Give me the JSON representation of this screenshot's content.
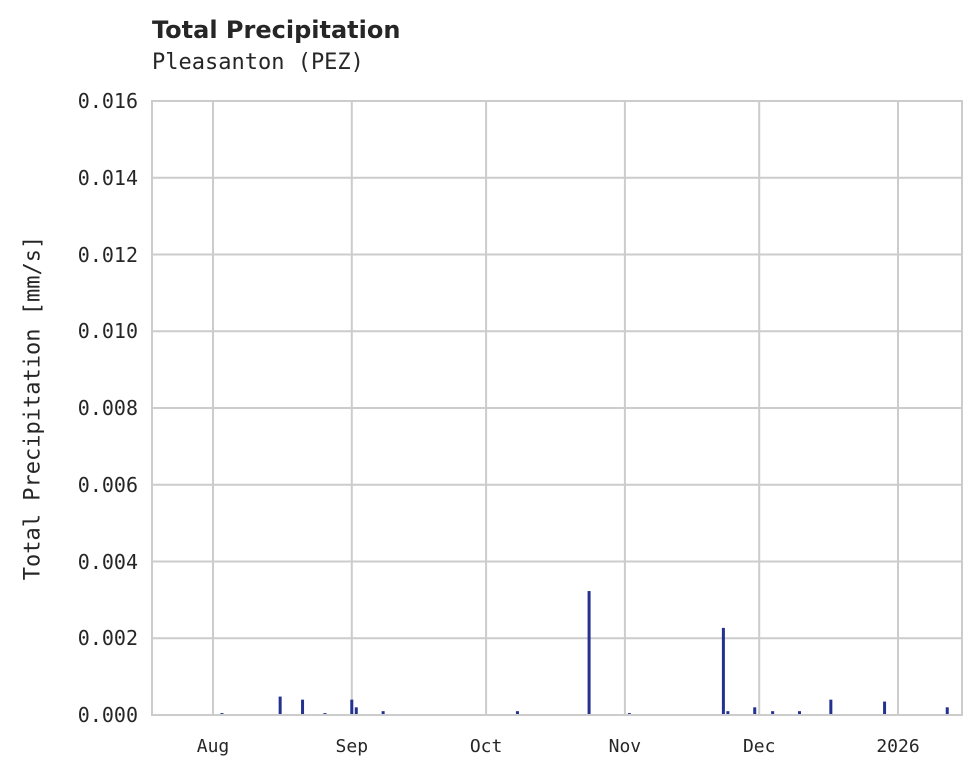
{
  "chart_data": {
    "type": "bar",
    "title": "Total Precipitation",
    "subtitle": "Pleasanton (PEZ)",
    "xlabel": "",
    "ylabel": "Total Precipitation [mm/s]",
    "ylim": [
      0,
      0.016
    ],
    "yticks": [
      "0.000",
      "0.002",
      "0.004",
      "0.006",
      "0.008",
      "0.010",
      "0.012",
      "0.014",
      "0.016"
    ],
    "xticks": [
      "Aug",
      "Sep",
      "Oct",
      "Nov",
      "Dec",
      "2026"
    ],
    "grid": true,
    "color": "#233190",
    "series": [
      {
        "name": "Total Precipitation",
        "points": [
          {
            "date": "2025-08-03",
            "value": 5e-05
          },
          {
            "date": "2025-08-16",
            "value": 0.00048
          },
          {
            "date": "2025-08-21",
            "value": 0.0004
          },
          {
            "date": "2025-08-26",
            "value": 5e-05
          },
          {
            "date": "2025-09-01",
            "value": 0.0004
          },
          {
            "date": "2025-09-02",
            "value": 0.0002
          },
          {
            "date": "2025-09-08",
            "value": 0.0001
          },
          {
            "date": "2025-10-08",
            "value": 0.0001
          },
          {
            "date": "2025-10-24",
            "value": 0.00323
          },
          {
            "date": "2025-11-02",
            "value": 5e-05
          },
          {
            "date": "2025-11-23",
            "value": 0.00227
          },
          {
            "date": "2025-11-24",
            "value": 0.0001
          },
          {
            "date": "2025-11-30",
            "value": 0.0002
          },
          {
            "date": "2025-12-04",
            "value": 0.0001
          },
          {
            "date": "2025-12-10",
            "value": 0.0001
          },
          {
            "date": "2025-12-17",
            "value": 0.0004
          },
          {
            "date": "2025-12-29",
            "value": 0.00035
          },
          {
            "date": "2026-01-12",
            "value": 0.0002
          }
        ]
      }
    ]
  }
}
